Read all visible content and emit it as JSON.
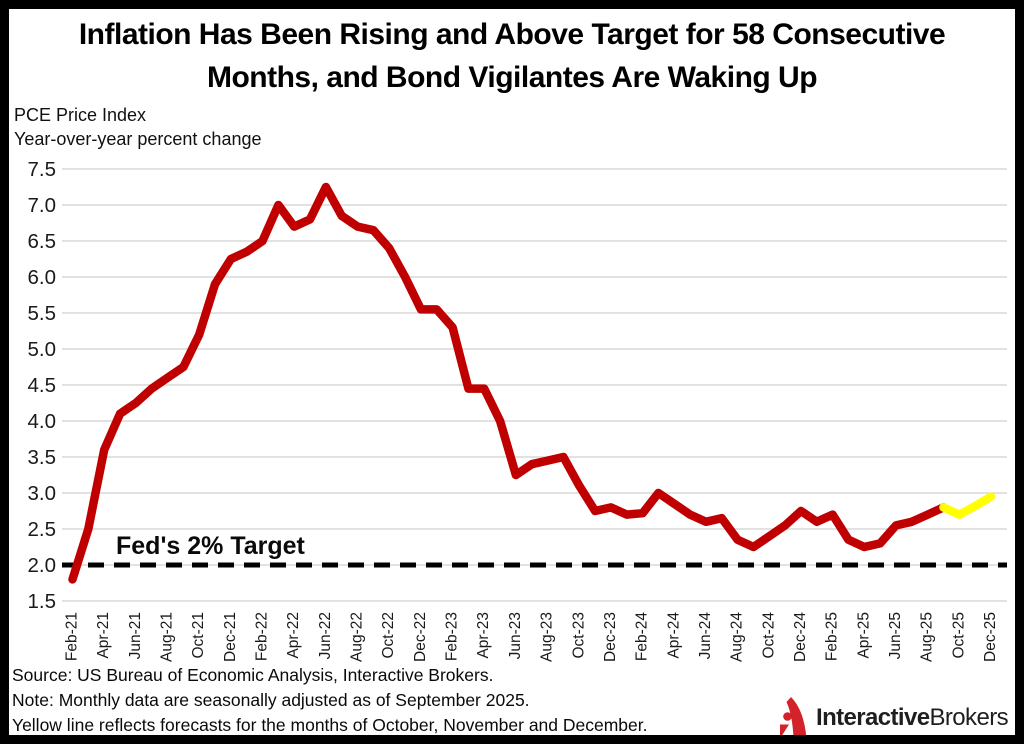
{
  "header": {
    "title_lines": [
      "Inflation Has Been Rising and Above Target for 58 Consecutive",
      "Months, and Bond Vigilantes Are Waking Up"
    ]
  },
  "subtitle": {
    "line1": "PCE Price Index",
    "line2": "Year-over-year percent change"
  },
  "chart_data": {
    "type": "line",
    "title": "PCE Price Index, year-over-year percent change",
    "ylim": [
      1.5,
      7.5
    ],
    "grid": true,
    "gridline_color": "#d9d9d9",
    "y_tick_labels": [
      "7.5",
      "7.0",
      "6.5",
      "6.0",
      "5.5",
      "5.0",
      "4.5",
      "4.0",
      "3.5",
      "3.0",
      "2.5",
      "2.0",
      "1.5"
    ],
    "x_tick_labels": [
      "Feb-21",
      "Apr-21",
      "Jun-21",
      "Aug-21",
      "Oct-21",
      "Dec-21",
      "Feb-22",
      "Apr-22",
      "Jun-22",
      "Aug-22",
      "Oct-22",
      "Dec-22",
      "Feb-23",
      "Apr-23",
      "Jun-23",
      "Aug-23",
      "Oct-23",
      "Dec-23",
      "Feb-24",
      "Apr-24",
      "Jun-24",
      "Aug-24",
      "Oct-24",
      "Dec-24",
      "Feb-25",
      "Apr-25",
      "Jun-25",
      "Aug-25",
      "Oct-25",
      "Dec-25"
    ],
    "months_per_tick": 2,
    "n_month_span": 58,
    "series": [
      {
        "name": "PCE inflation (actual)",
        "color": "#c00000",
        "start_index": 0,
        "values": [
          1.8,
          2.5,
          3.6,
          4.1,
          4.25,
          4.45,
          4.6,
          4.75,
          5.2,
          5.9,
          6.25,
          6.35,
          6.5,
          7.0,
          6.7,
          6.8,
          7.25,
          6.85,
          6.7,
          6.65,
          6.4,
          6.0,
          5.55,
          5.55,
          5.3,
          4.45,
          4.45,
          4.0,
          3.25,
          3.4,
          3.45,
          3.5,
          3.1,
          2.75,
          2.8,
          2.7,
          2.72,
          3.0,
          2.85,
          2.7,
          2.6,
          2.65,
          2.35,
          2.25,
          2.4,
          2.55,
          2.75,
          2.6,
          2.7,
          2.35,
          2.25,
          2.3,
          2.55,
          2.6,
          2.7,
          2.8
        ]
      },
      {
        "name": "PCE inflation (forecast)",
        "color": "#ffff00",
        "start_index": 55,
        "values": [
          2.8,
          2.7,
          2.82,
          2.95
        ]
      }
    ],
    "target_line": {
      "label": "Fed's 2% Target",
      "value": 2.0,
      "color": "#000000"
    },
    "legend_position": "none"
  },
  "footer": {
    "lines": [
      "Source: US Bureau of Economic Analysis, Interactive Brokers.",
      "Note: Monthly data are seasonally adjusted as of September  2025.",
      "Yellow line reflects forecasts for the months of October, November and December."
    ]
  },
  "logo": {
    "part1": "Interactive",
    "part2": "Brokers",
    "icon_color": "#d4222a"
  }
}
